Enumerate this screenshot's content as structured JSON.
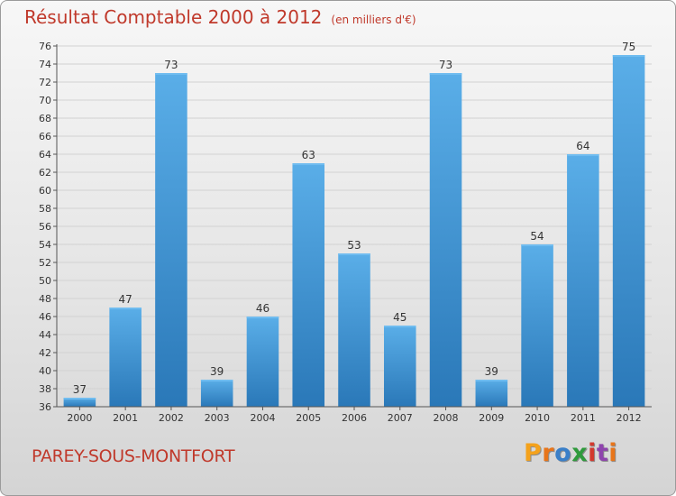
{
  "header": {
    "title": "Résultat Comptable 2000 à 2012",
    "subtitle": "(en milliers d'€)"
  },
  "footer": {
    "commune": "PAREY-SOUS-MONTFORT",
    "logo_letters": [
      "P",
      "r",
      "o",
      "x",
      "i",
      "t",
      "i"
    ],
    "logo_colors": [
      "#f4a21c",
      "#e8751a",
      "#3a7fc8",
      "#2f9a3c",
      "#d23a2f",
      "#8e44ad",
      "#e8751a"
    ]
  },
  "colors": {
    "title": "#c0392b",
    "bar_light": "#5aaee8",
    "bar_dark": "#2a78b8"
  },
  "chart_data": {
    "type": "bar",
    "title": "Résultat Comptable 2000 à 2012",
    "subtitle": "(en milliers d'€)",
    "xlabel": "",
    "ylabel": "",
    "categories": [
      "2000",
      "2001",
      "2002",
      "2003",
      "2004",
      "2005",
      "2006",
      "2007",
      "2008",
      "2009",
      "2010",
      "2011",
      "2012"
    ],
    "values": [
      37,
      47,
      73,
      39,
      46,
      63,
      53,
      45,
      73,
      39,
      54,
      64,
      75
    ],
    "ylim": [
      36,
      76
    ],
    "ytick_step": 2,
    "grid": true
  }
}
